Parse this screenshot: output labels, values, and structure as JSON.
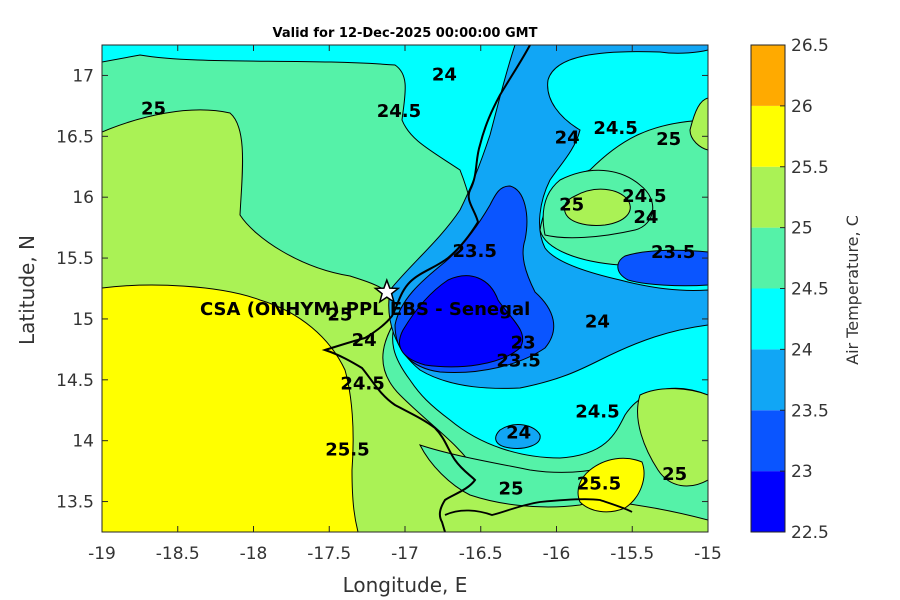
{
  "title": "Valid for 12-Dec-2025 00:00:00 GMT",
  "xlabel": "Longitude, E",
  "ylabel": "Latitude, N",
  "x_ticks": [
    "-19",
    "-18.5",
    "-18",
    "-17.5",
    "-17",
    "-16.5",
    "-16",
    "-15.5",
    "-15"
  ],
  "y_ticks": [
    "13.5",
    "14",
    "14.5",
    "15",
    "15.5",
    "16",
    "16.5",
    "17"
  ],
  "site_label": "CSA (ONHYM) PPL EBS  - Senegal",
  "site_marker": {
    "lon": -17.12,
    "lat": 15.22
  },
  "colorbar": {
    "label": "Air Temperature, C",
    "ticks": [
      "22.5",
      "23",
      "23.5",
      "24",
      "24.5",
      "25",
      "25.5",
      "26",
      "26.5"
    ],
    "levels": [
      22.5,
      23,
      23.5,
      24,
      24.5,
      25,
      25.5,
      26,
      26.5
    ],
    "colors": [
      "#0000ff",
      "#0a55ff",
      "#11a6f5",
      "#00ffff",
      "#55f2a8",
      "#aaf255",
      "#ffff00",
      "#ffaa00",
      "#ff5500"
    ]
  },
  "contour_labels": [
    {
      "text": "25",
      "lon": -18.66,
      "lat": 16.72
    },
    {
      "text": "24.5",
      "lon": -17.04,
      "lat": 16.7
    },
    {
      "text": "24",
      "lon": -16.74,
      "lat": 17.0
    },
    {
      "text": "24",
      "lon": -15.93,
      "lat": 16.48
    },
    {
      "text": "24.5",
      "lon": -15.61,
      "lat": 16.56
    },
    {
      "text": "25",
      "lon": -15.26,
      "lat": 16.47
    },
    {
      "text": "25",
      "lon": -15.9,
      "lat": 15.93
    },
    {
      "text": "24.5",
      "lon": -15.42,
      "lat": 16.0
    },
    {
      "text": "24",
      "lon": -15.41,
      "lat": 15.83
    },
    {
      "text": "23.5",
      "lon": -15.23,
      "lat": 15.54
    },
    {
      "text": "23.5",
      "lon": -16.54,
      "lat": 15.55
    },
    {
      "text": "24",
      "lon": -15.73,
      "lat": 14.97
    },
    {
      "text": "25",
      "lon": -17.43,
      "lat": 15.03
    },
    {
      "text": "24",
      "lon": -17.27,
      "lat": 14.82
    },
    {
      "text": "23",
      "lon": -16.22,
      "lat": 14.8
    },
    {
      "text": "23.5",
      "lon": -16.25,
      "lat": 14.65
    },
    {
      "text": "24.5",
      "lon": -17.28,
      "lat": 14.46
    },
    {
      "text": "24.5",
      "lon": -15.73,
      "lat": 14.23
    },
    {
      "text": "24",
      "lon": -16.25,
      "lat": 14.06
    },
    {
      "text": "25.5",
      "lon": -17.38,
      "lat": 13.92
    },
    {
      "text": "25",
      "lon": -16.3,
      "lat": 13.6
    },
    {
      "text": "25.5",
      "lon": -15.72,
      "lat": 13.64
    },
    {
      "text": "25",
      "lon": -15.22,
      "lat": 13.72
    }
  ]
}
